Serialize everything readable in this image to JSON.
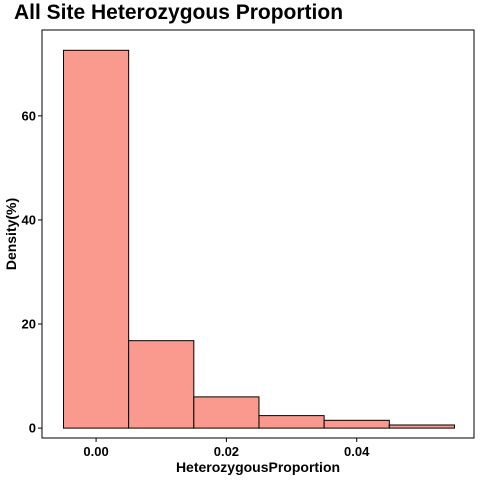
{
  "chart_data": {
    "type": "bar",
    "title": "All Site Heterozygous Proportion",
    "xlabel": "HeterozygousProportion",
    "ylabel": "Density(%)",
    "bins": [
      {
        "x0": -0.005,
        "x1": 0.005,
        "value": 72.6
      },
      {
        "x0": 0.005,
        "x1": 0.015,
        "value": 16.8
      },
      {
        "x0": 0.015,
        "x1": 0.025,
        "value": 6.0
      },
      {
        "x0": 0.025,
        "x1": 0.035,
        "value": 2.4
      },
      {
        "x0": 0.035,
        "x1": 0.045,
        "value": 1.5
      },
      {
        "x0": 0.045,
        "x1": 0.055,
        "value": 0.6
      }
    ],
    "xlim": [
      -0.0083,
      0.058
    ],
    "ylim": [
      -1.9,
      76.5
    ],
    "xticks": [
      {
        "value": 0.0,
        "label": "0.00"
      },
      {
        "value": 0.02,
        "label": "0.02"
      },
      {
        "value": 0.04,
        "label": "0.04"
      }
    ],
    "yticks": [
      {
        "value": 0,
        "label": "0"
      },
      {
        "value": 20,
        "label": "20"
      },
      {
        "value": 40,
        "label": "40"
      },
      {
        "value": 60,
        "label": "60"
      }
    ],
    "grid": false,
    "bar_fill": "#FA9A8F",
    "bar_stroke": "#000000"
  }
}
